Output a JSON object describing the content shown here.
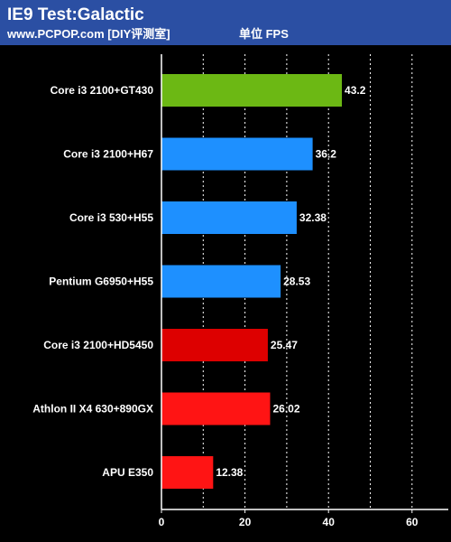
{
  "header": {
    "title": "IE9 Test:Galactic",
    "site": "www.PCPOP.com [DIY评测室]",
    "unit": "单位 FPS"
  },
  "colors": {
    "header_bg": "#2b4fa3",
    "chart_bg": "#000000",
    "grid": "#ffffff",
    "green": "#6cb814",
    "blue": "#1e90ff",
    "dark_red": "#dd0000",
    "red": "#ff1414"
  },
  "chart_data": {
    "type": "bar",
    "orientation": "horizontal",
    "categories": [
      "Core i3 2100+GT430",
      "Core i3 2100+H67",
      "Core i3 530+H55",
      "Pentium G6950+H55",
      "Core i3 2100+HD5450",
      "Athlon II X4 630+890GX",
      "APU E350"
    ],
    "values": [
      43.2,
      36.2,
      32.38,
      28.53,
      25.47,
      26.02,
      12.38
    ],
    "value_labels": [
      "43.2",
      "36.2",
      "32.38",
      "28.53",
      "25.47",
      "26.02",
      "12.38"
    ],
    "bar_colors": [
      "#6cb814",
      "#1e90ff",
      "#1e90ff",
      "#1e90ff",
      "#dd0000",
      "#ff1414",
      "#ff1414"
    ],
    "xlim": [
      0,
      65
    ],
    "xticks": [
      0,
      20,
      40,
      60
    ],
    "xtick_labels": [
      "0",
      "20",
      "40",
      "60"
    ],
    "grid_step": 10,
    "grid": true
  }
}
